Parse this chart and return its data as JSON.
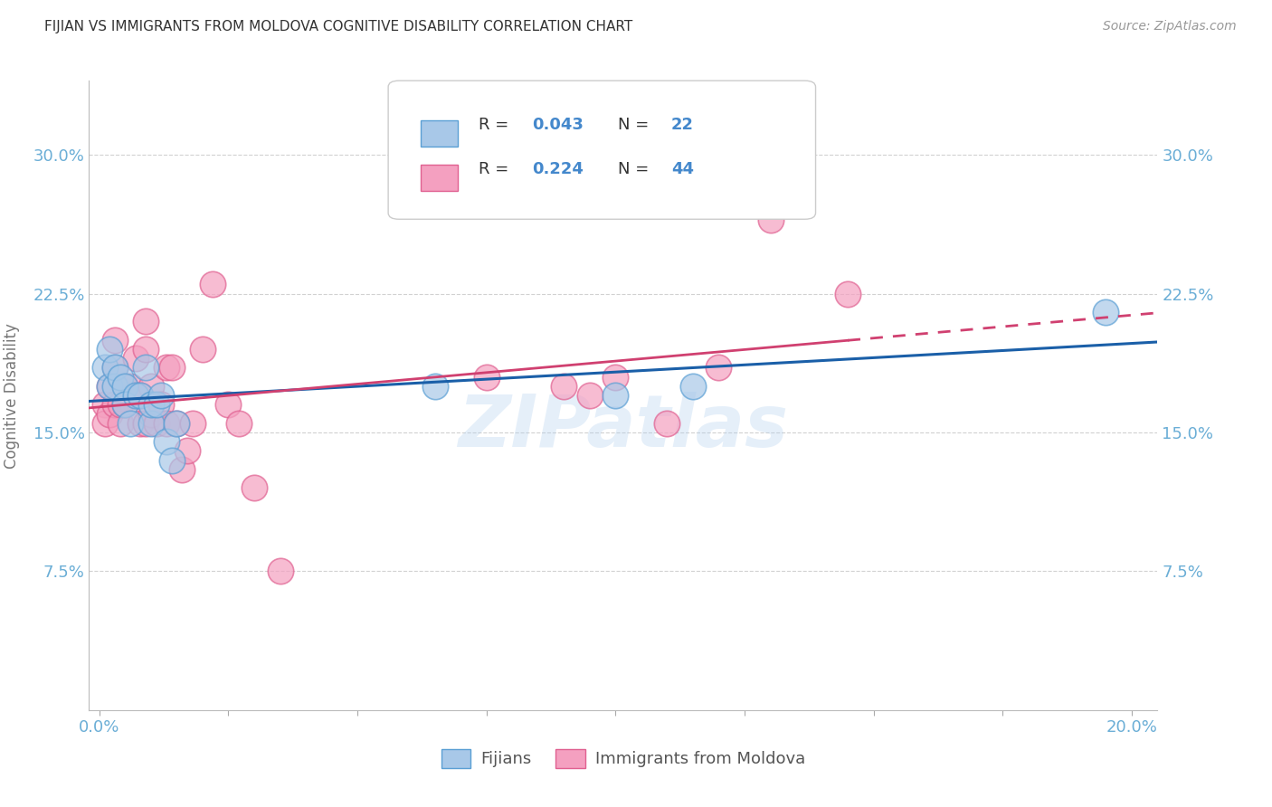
{
  "title": "FIJIAN VS IMMIGRANTS FROM MOLDOVA COGNITIVE DISABILITY CORRELATION CHART",
  "source": "Source: ZipAtlas.com",
  "ylabel_label": "Cognitive Disability",
  "xlim": [
    -0.002,
    0.205
  ],
  "ylim": [
    0.0,
    0.34
  ],
  "xticks": [
    0.0,
    0.025,
    0.05,
    0.075,
    0.1,
    0.125,
    0.15,
    0.175,
    0.2
  ],
  "xtick_labels_show": [
    "0.0%",
    "",
    "",
    "",
    "",
    "",
    "",
    "",
    "20.0%"
  ],
  "yticks": [
    0.075,
    0.15,
    0.225,
    0.3
  ],
  "ytick_labels": [
    "7.5%",
    "15.0%",
    "22.5%",
    "30.0%"
  ],
  "fijian_color": "#a8c8e8",
  "fijian_edge_color": "#5a9fd4",
  "moldova_color": "#f4a0c0",
  "moldova_edge_color": "#e06090",
  "fijian_line_color": "#1a5fa8",
  "moldova_line_color": "#d04070",
  "axis_color": "#6baed6",
  "watermark": "ZIPatlas",
  "legend_box_color": "#e8e8e8",
  "legend_text_color": "#4488cc",
  "fijians_x": [
    0.001,
    0.002,
    0.002,
    0.003,
    0.003,
    0.004,
    0.005,
    0.005,
    0.006,
    0.007,
    0.008,
    0.009,
    0.01,
    0.01,
    0.011,
    0.012,
    0.013,
    0.014,
    0.015,
    0.065,
    0.1,
    0.115,
    0.195
  ],
  "fijians_y": [
    0.185,
    0.195,
    0.175,
    0.175,
    0.185,
    0.18,
    0.175,
    0.165,
    0.155,
    0.17,
    0.17,
    0.185,
    0.155,
    0.165,
    0.165,
    0.17,
    0.145,
    0.135,
    0.155,
    0.175,
    0.17,
    0.175,
    0.215
  ],
  "moldova_x": [
    0.001,
    0.001,
    0.002,
    0.002,
    0.003,
    0.003,
    0.003,
    0.004,
    0.004,
    0.005,
    0.005,
    0.006,
    0.007,
    0.007,
    0.008,
    0.008,
    0.009,
    0.009,
    0.009,
    0.01,
    0.01,
    0.011,
    0.012,
    0.013,
    0.013,
    0.014,
    0.015,
    0.016,
    0.017,
    0.018,
    0.02,
    0.022,
    0.025,
    0.027,
    0.03,
    0.035,
    0.075,
    0.09,
    0.095,
    0.1,
    0.11,
    0.12,
    0.13,
    0.145
  ],
  "moldova_y": [
    0.165,
    0.155,
    0.175,
    0.16,
    0.185,
    0.2,
    0.165,
    0.155,
    0.165,
    0.175,
    0.165,
    0.175,
    0.19,
    0.17,
    0.17,
    0.155,
    0.21,
    0.195,
    0.155,
    0.175,
    0.16,
    0.155,
    0.165,
    0.155,
    0.185,
    0.185,
    0.155,
    0.13,
    0.14,
    0.155,
    0.195,
    0.23,
    0.165,
    0.155,
    0.12,
    0.075,
    0.18,
    0.175,
    0.17,
    0.18,
    0.155,
    0.185,
    0.265,
    0.225
  ]
}
